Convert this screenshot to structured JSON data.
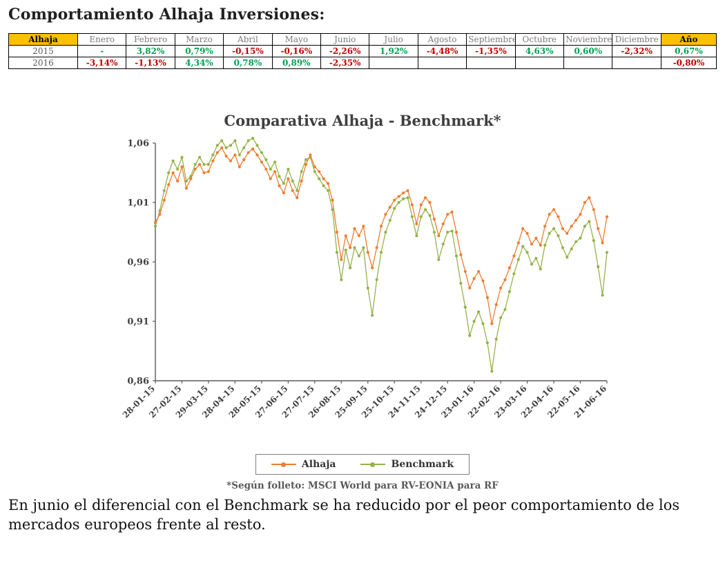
{
  "page": {
    "title": "Comportamiento Alhaja Inversiones:"
  },
  "colors": {
    "positive": "#00A050",
    "negative": "#C00000",
    "header_accent": "#FFC000",
    "alhaja": "#ED7D31",
    "benchmark": "#94B24A"
  },
  "table": {
    "header": [
      "Alhaja",
      "Enero",
      "Febrero",
      "Marzo",
      "Abril",
      "Mayo",
      "Junio",
      "Julio",
      "Agosto",
      "Septiembre",
      "Octubre",
      "Noviembre",
      "Diciembre",
      "Año"
    ],
    "rows": [
      {
        "year": "2015",
        "values": [
          "-",
          "3,82%",
          "0,79%",
          "-0,15%",
          "-0,16%",
          "-2,26%",
          "1,92%",
          "-4,48%",
          "-1,35%",
          "4,63%",
          "0,60%",
          "-2,32%"
        ],
        "total": "0,67%"
      },
      {
        "year": "2016",
        "values": [
          "-3,14%",
          "-1,13%",
          "4,34%",
          "0,78%",
          "0,89%",
          "-2,35%",
          "",
          "",
          "",
          "",
          "",
          ""
        ],
        "total": "-0,80%"
      }
    ]
  },
  "chart_data": {
    "type": "line",
    "title": "Comparativa Alhaja - Benchmark*",
    "xlabel": "",
    "ylabel": "",
    "ylim": [
      0.86,
      1.06
    ],
    "yticks": [
      0.86,
      0.91,
      0.96,
      1.01,
      1.06
    ],
    "ytick_labels": [
      "0,86",
      "0,91",
      "0,96",
      "1,01",
      "1,06"
    ],
    "xtick_labels": [
      "28-01-15",
      "27-02-15",
      "29-03-15",
      "28-04-15",
      "28-05-15",
      "27-06-15",
      "27-07-15",
      "26-08-15",
      "25-09-15",
      "25-10-15",
      "24-11-15",
      "24-12-15",
      "23-01-16",
      "22-02-16",
      "23-03-16",
      "22-04-16",
      "22-05-16",
      "21-06-16"
    ],
    "xtick_every": 6,
    "grid": false,
    "legend_position": "bottom",
    "series": [
      {
        "name": "Alhaja",
        "color": "#ED7D31",
        "values": [
          0.993,
          1.0,
          1.012,
          1.025,
          1.035,
          1.028,
          1.04,
          1.022,
          1.03,
          1.038,
          1.042,
          1.035,
          1.036,
          1.045,
          1.052,
          1.056,
          1.049,
          1.045,
          1.05,
          1.04,
          1.046,
          1.052,
          1.055,
          1.05,
          1.044,
          1.038,
          1.03,
          1.036,
          1.024,
          1.018,
          1.03,
          1.02,
          1.014,
          1.028,
          1.042,
          1.05,
          1.04,
          1.036,
          1.03,
          1.026,
          1.012,
          0.985,
          0.962,
          0.982,
          0.972,
          0.988,
          0.982,
          0.99,
          0.968,
          0.955,
          0.972,
          0.99,
          1.0,
          1.006,
          1.012,
          1.015,
          1.018,
          1.02,
          1.008,
          0.992,
          1.008,
          1.014,
          1.01,
          0.996,
          0.982,
          0.992,
          1.0,
          1.002,
          0.985,
          0.966,
          0.952,
          0.938,
          0.946,
          0.952,
          0.944,
          0.93,
          0.908,
          0.924,
          0.938,
          0.945,
          0.955,
          0.965,
          0.976,
          0.988,
          0.984,
          0.975,
          0.98,
          0.974,
          0.99,
          1.0,
          1.004,
          0.998,
          0.988,
          0.984,
          0.99,
          0.995,
          1.0,
          1.01,
          1.014,
          1.004,
          0.988,
          0.976,
          0.998
        ]
      },
      {
        "name": "Benchmark",
        "color": "#94B24A",
        "values": [
          0.99,
          1.003,
          1.02,
          1.035,
          1.045,
          1.038,
          1.048,
          1.028,
          1.032,
          1.042,
          1.048,
          1.042,
          1.042,
          1.05,
          1.058,
          1.062,
          1.056,
          1.058,
          1.062,
          1.05,
          1.056,
          1.062,
          1.064,
          1.058,
          1.052,
          1.046,
          1.038,
          1.044,
          1.032,
          1.026,
          1.038,
          1.028,
          1.02,
          1.036,
          1.046,
          1.048,
          1.036,
          1.03,
          1.024,
          1.02,
          1.004,
          0.968,
          0.945,
          0.97,
          0.955,
          0.972,
          0.965,
          0.972,
          0.938,
          0.915,
          0.945,
          0.968,
          0.985,
          0.995,
          1.005,
          1.01,
          1.013,
          1.014,
          0.998,
          0.982,
          0.998,
          1.004,
          0.999,
          0.985,
          0.962,
          0.975,
          0.985,
          0.986,
          0.965,
          0.942,
          0.922,
          0.898,
          0.91,
          0.918,
          0.908,
          0.892,
          0.868,
          0.895,
          0.913,
          0.92,
          0.935,
          0.95,
          0.962,
          0.973,
          0.968,
          0.958,
          0.963,
          0.954,
          0.974,
          0.984,
          0.988,
          0.982,
          0.972,
          0.964,
          0.971,
          0.977,
          0.98,
          0.99,
          0.994,
          0.978,
          0.956,
          0.932,
          0.968
        ]
      }
    ]
  },
  "footnote": "*Según folleto: MSCI World para RV-EONIA para RF",
  "commentary": "En junio el diferencial con el Benchmark se ha reducido por el peor comportamiento de los mercados europeos frente al resto."
}
